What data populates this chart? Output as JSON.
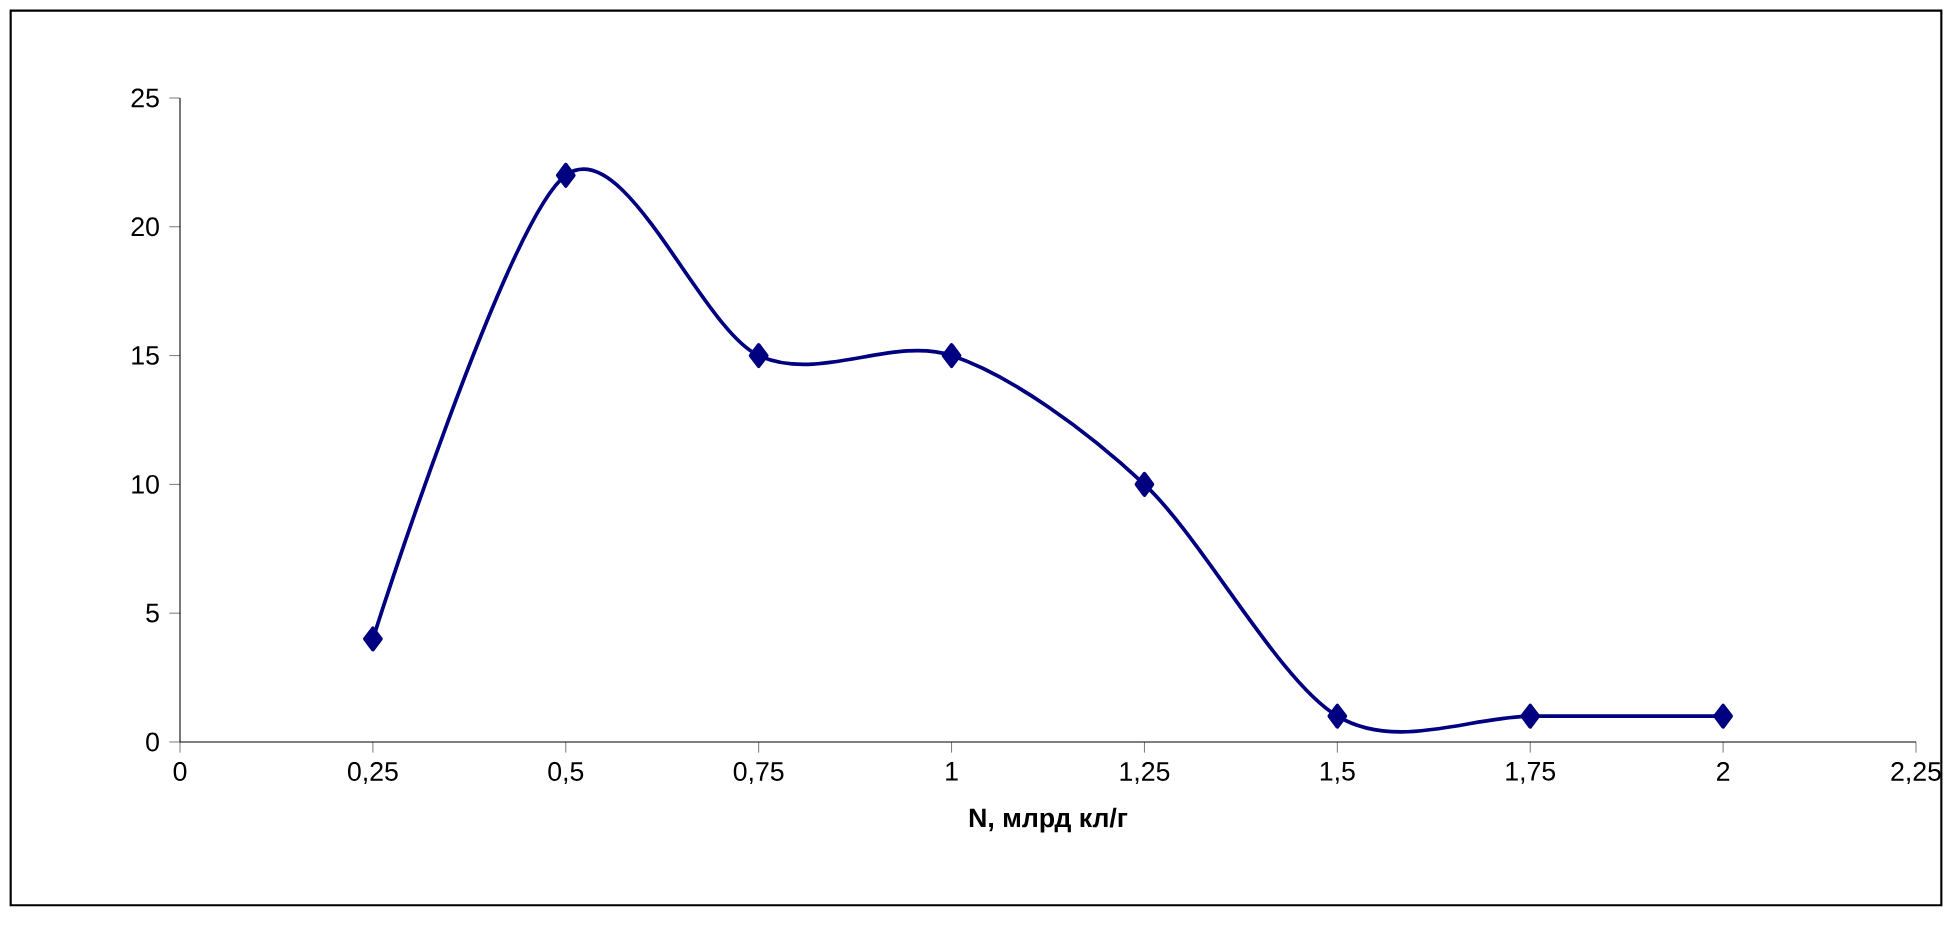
{
  "chart_data": {
    "type": "line",
    "xlabel": "N, млрд  кл/г",
    "x": [
      0.25,
      0.5,
      0.75,
      1,
      1.25,
      1.5,
      1.75,
      2
    ],
    "values": [
      4,
      22,
      15,
      15,
      10,
      1,
      1,
      1
    ],
    "color": "#000080",
    "marker": "diamond",
    "line_style": "solid",
    "grid": false,
    "xlim": [
      0,
      2.25
    ],
    "ylim": [
      0,
      25
    ],
    "xticks": [
      0,
      {
        "value": 0.25,
        "label": "0,25"
      },
      {
        "value": 0.5,
        "label": "0,5"
      },
      {
        "value": 0.75,
        "label": "0,75"
      },
      1,
      {
        "value": 1.25,
        "label": "1,25"
      },
      {
        "value": 1.5,
        "label": "1,5"
      },
      {
        "value": 1.75,
        "label": "1,75"
      },
      2,
      {
        "value": 2.25,
        "label": "2,25"
      }
    ],
    "yticks": [
      0,
      5,
      10,
      15,
      20,
      25
    ]
  }
}
